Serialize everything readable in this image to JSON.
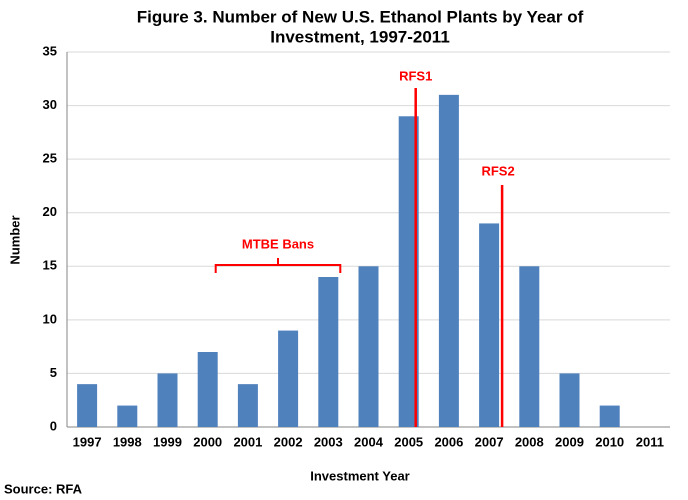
{
  "chart_data": {
    "type": "bar",
    "title": [
      "Figure 3. Number of New U.S. Ethanol Plants by Year of",
      "Investment, 1997-2011"
    ],
    "x_label": "Investment Year",
    "y_label": "Number",
    "categories": [
      "1997",
      "1998",
      "1999",
      "2000",
      "2001",
      "2002",
      "2003",
      "2004",
      "2005",
      "2006",
      "2007",
      "2008",
      "2009",
      "2010",
      "2011"
    ],
    "values": [
      4,
      2,
      5,
      7,
      4,
      9,
      14,
      15,
      29,
      31,
      19,
      15,
      5,
      2,
      0
    ],
    "color": "#4f81bd",
    "ylim": [
      0,
      35
    ],
    "yticks": [
      0,
      5,
      10,
      15,
      20,
      25,
      30,
      35
    ],
    "grid": true,
    "annotations": [
      "RFS1",
      "RFS2",
      "MTBE Bans"
    ],
    "annotation_color": "#ff0000",
    "source": "Source: RFA"
  }
}
